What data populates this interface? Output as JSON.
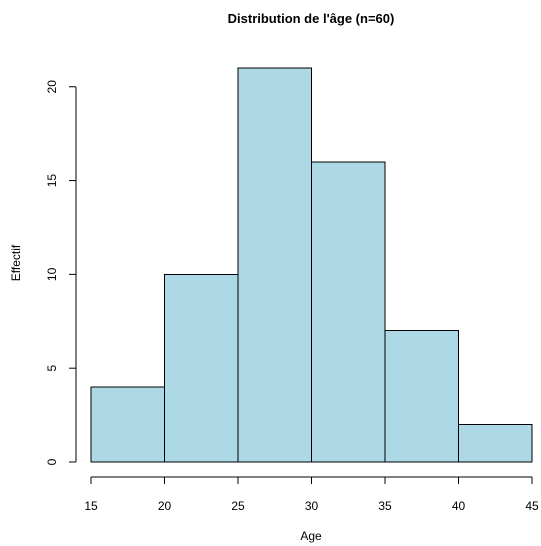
{
  "chart_data": {
    "type": "bar",
    "title": "Distribution de l'âge (n=60)",
    "xlabel": "Age",
    "ylabel": "Effectif",
    "bins": [
      {
        "from": 15,
        "to": 20,
        "value": 4
      },
      {
        "from": 20,
        "to": 25,
        "value": 10
      },
      {
        "from": 25,
        "to": 30,
        "value": 21
      },
      {
        "from": 30,
        "to": 35,
        "value": 16
      },
      {
        "from": 35,
        "to": 40,
        "value": 7
      },
      {
        "from": 40,
        "to": 45,
        "value": 2
      }
    ],
    "x_ticks": [
      15,
      20,
      25,
      30,
      35,
      40,
      45
    ],
    "y_ticks": [
      0,
      5,
      10,
      15,
      20
    ],
    "xlim": [
      15,
      45
    ],
    "ylim": [
      0,
      21
    ],
    "bar_fill": "#add8e6",
    "bar_stroke": "#000000",
    "grid": false
  }
}
